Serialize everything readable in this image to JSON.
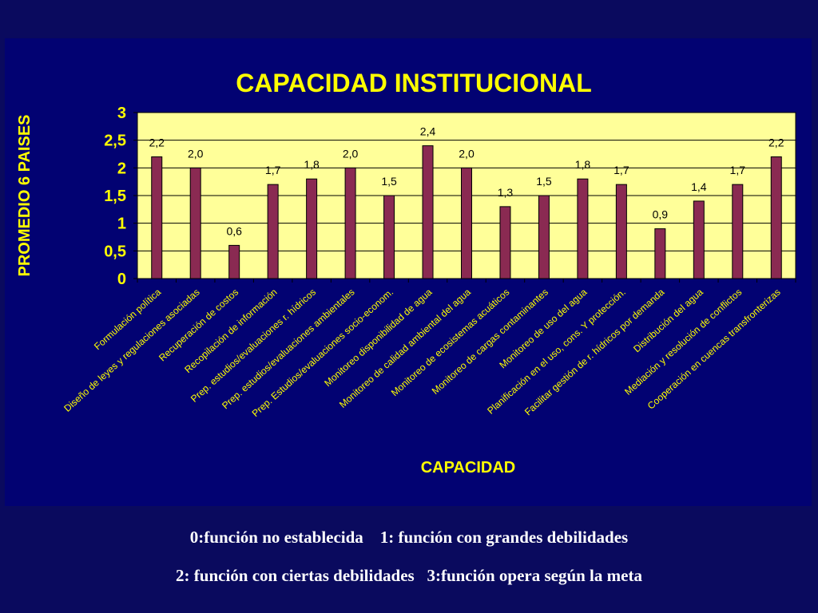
{
  "chart_data": {
    "type": "bar",
    "title": "CAPACIDAD INSTITUCIONAL",
    "xlabel": "CAPACIDAD",
    "ylabel": "PROMEDIO 6 PAISES",
    "ylim": [
      0,
      3
    ],
    "yticks": [
      "0",
      "0,5",
      "1",
      "1,5",
      "2",
      "2,5",
      "3"
    ],
    "grid": true,
    "categories": [
      "Formulación política",
      "Diseño de leyes y regulaciones asociadas",
      "Recuperación de costos",
      "Recopilación de información",
      "Prep. estudios/evaluaciones r. hídricos",
      "Prep. estudios/evaluaciones ambientales",
      "Prep. Estudios/evaluaciones socio-econom.",
      "Monitoreo disponibilidad de agua",
      "Monitoreo de calidad ambiental del agua",
      "Monitoreo de ecosistemas acuáticos",
      "Monitoreo de cargas contaminantes",
      "Monitoreo de uso del agua",
      "Planificación en el uso, cons. Y protección.",
      "Facilitar gestión de r. hídricos por demanda",
      "Distribución del agua",
      "Mediación y resolución de conflictos",
      "Cooperación en cuencas transfronterizas"
    ],
    "values": [
      2.2,
      2.0,
      0.6,
      1.7,
      1.8,
      2.0,
      1.5,
      2.4,
      2.0,
      1.3,
      1.5,
      1.8,
      1.7,
      0.9,
      1.4,
      1.7,
      2.2
    ],
    "data_labels": [
      "2,2",
      "2,0",
      "0,6",
      "1,7",
      "1,8",
      "2,0",
      "1,5",
      "2,4",
      "2,0",
      "1,3",
      "1,5",
      "1,8",
      "1,7",
      "0,9",
      "1,4",
      "1,7",
      "2,2"
    ],
    "colors": {
      "bar": "#8a2a52",
      "plot_background": "#ffff99",
      "panel_background": "#020272",
      "page_background": "#0a0a5e",
      "title": "#ffff00",
      "axis_text": "#ffff00"
    }
  },
  "legend_notes": {
    "line1": "0:función no establecida    1: función con grandes debilidades",
    "line2": "2: función con ciertas debilidades   3:función opera según la meta"
  }
}
